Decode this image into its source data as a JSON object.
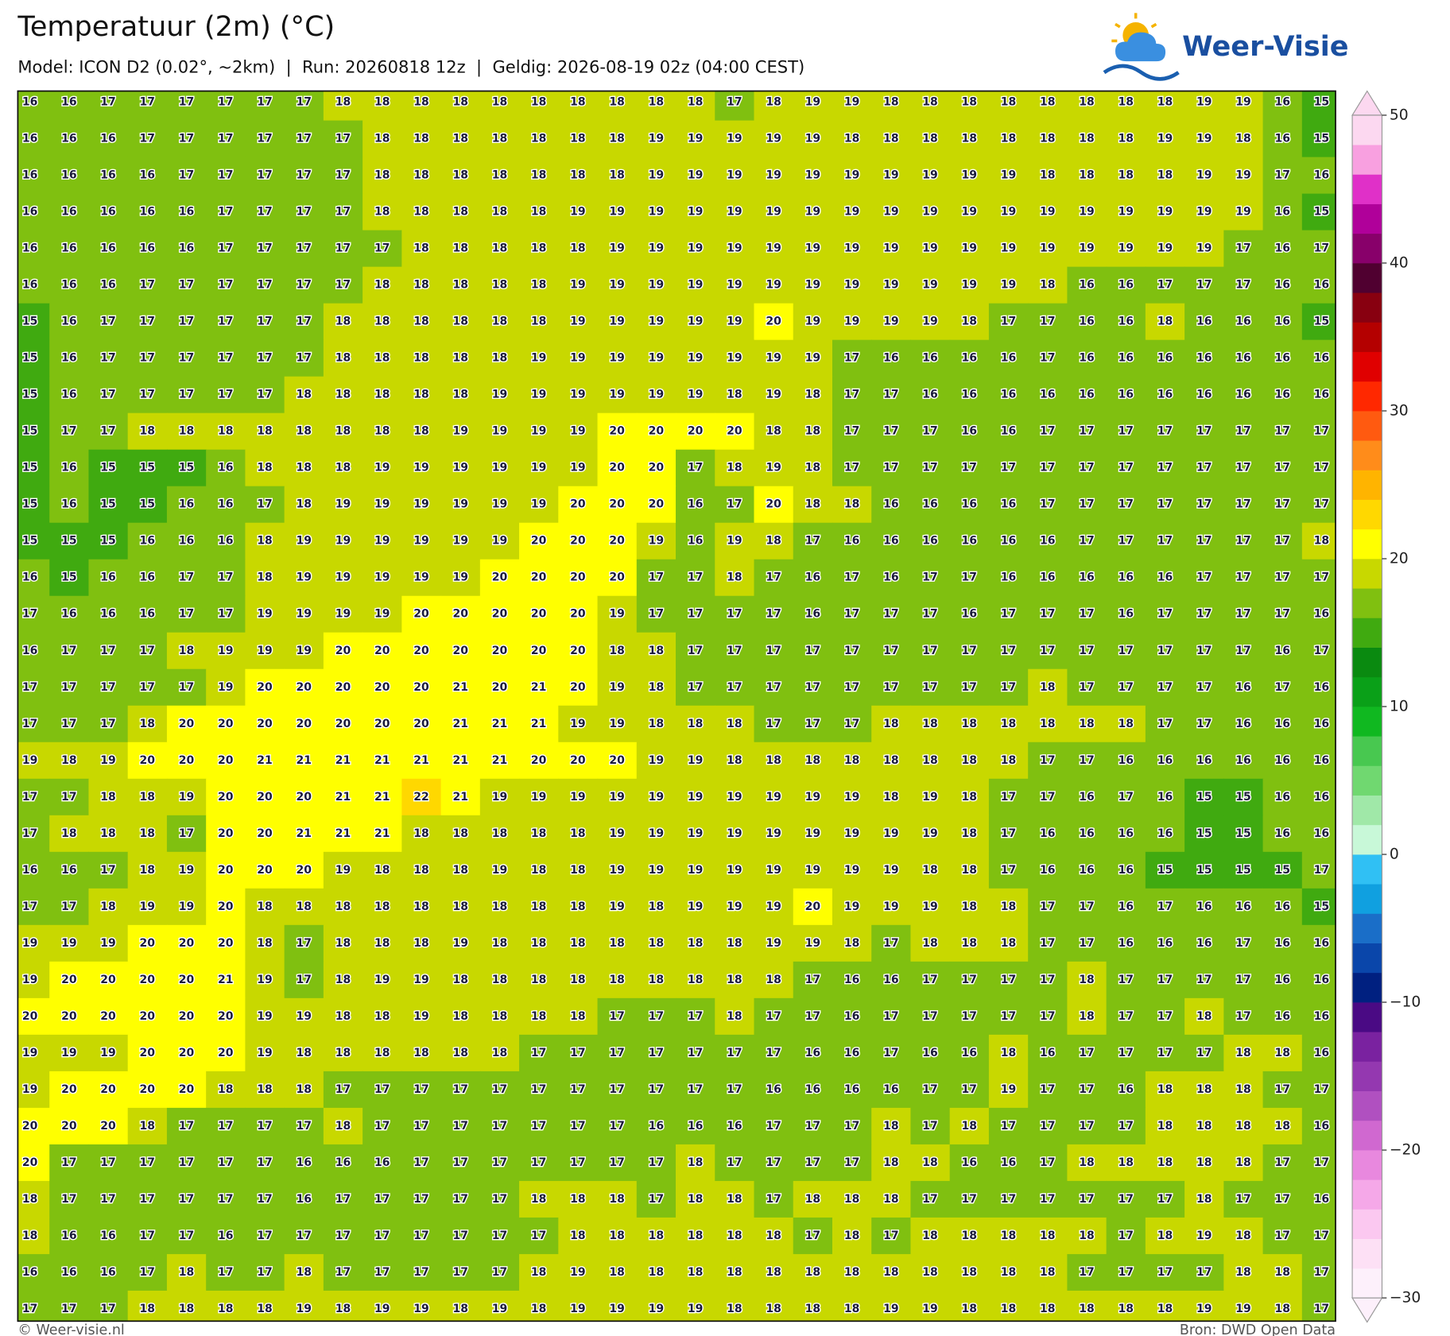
{
  "header": {
    "title": "Temperatuur (2m) (°C)",
    "subtitle": "Model: ICON D2 (0.02°, ~2km)  |  Run: 20260818 12z  |  Geldig: 2026-08-19 02z (04:00 CEST)",
    "logo": "Weer-Visie"
  },
  "map": {
    "rows": [
      [
        16,
        16,
        17,
        17,
        17,
        17,
        17,
        17,
        18,
        18,
        18,
        18,
        18,
        18,
        18,
        18,
        18,
        18,
        17,
        18,
        19,
        19,
        18,
        18,
        18,
        18,
        18,
        18,
        18,
        18,
        19,
        19,
        16,
        15
      ],
      [
        16,
        16,
        16,
        17,
        17,
        17,
        17,
        17,
        17,
        18,
        18,
        18,
        18,
        18,
        18,
        18,
        19,
        19,
        19,
        19,
        19,
        18,
        18,
        18,
        18,
        18,
        18,
        18,
        18,
        19,
        19,
        18,
        16,
        15
      ],
      [
        16,
        16,
        16,
        16,
        17,
        17,
        17,
        17,
        17,
        18,
        18,
        18,
        18,
        18,
        18,
        18,
        19,
        19,
        19,
        19,
        19,
        19,
        19,
        19,
        19,
        19,
        18,
        18,
        18,
        18,
        19,
        19,
        17,
        16
      ],
      [
        16,
        16,
        16,
        16,
        16,
        17,
        17,
        17,
        17,
        18,
        18,
        18,
        18,
        18,
        19,
        19,
        19,
        19,
        19,
        19,
        19,
        19,
        19,
        19,
        19,
        19,
        19,
        19,
        19,
        19,
        19,
        19,
        16,
        15
      ],
      [
        16,
        16,
        16,
        16,
        16,
        17,
        17,
        17,
        17,
        17,
        18,
        18,
        18,
        18,
        18,
        19,
        19,
        19,
        19,
        19,
        19,
        19,
        19,
        19,
        19,
        19,
        19,
        19,
        19,
        19,
        19,
        17,
        16,
        17
      ],
      [
        16,
        16,
        16,
        17,
        17,
        17,
        17,
        17,
        17,
        18,
        18,
        18,
        18,
        18,
        19,
        19,
        19,
        19,
        19,
        19,
        19,
        19,
        19,
        19,
        19,
        19,
        18,
        16,
        16,
        17,
        17,
        17,
        16,
        16
      ],
      [
        15,
        16,
        17,
        17,
        17,
        17,
        17,
        17,
        18,
        18,
        18,
        18,
        18,
        18,
        19,
        19,
        19,
        19,
        19,
        20,
        19,
        19,
        19,
        19,
        18,
        17,
        17,
        16,
        16,
        18,
        16,
        16,
        16,
        15
      ],
      [
        15,
        16,
        17,
        17,
        17,
        17,
        17,
        17,
        18,
        18,
        18,
        18,
        18,
        19,
        19,
        19,
        19,
        19,
        19,
        19,
        19,
        17,
        16,
        16,
        16,
        16,
        17,
        16,
        16,
        16,
        16,
        16,
        16,
        16
      ],
      [
        15,
        16,
        17,
        17,
        17,
        17,
        17,
        18,
        18,
        18,
        18,
        18,
        19,
        19,
        19,
        19,
        19,
        19,
        18,
        19,
        18,
        17,
        17,
        16,
        16,
        16,
        16,
        16,
        16,
        16,
        16,
        16,
        16,
        16
      ],
      [
        15,
        17,
        17,
        18,
        18,
        18,
        18,
        18,
        18,
        18,
        18,
        19,
        19,
        19,
        19,
        20,
        20,
        20,
        20,
        18,
        18,
        17,
        17,
        17,
        16,
        16,
        17,
        17,
        17,
        17,
        17,
        17,
        17,
        17
      ],
      [
        15,
        16,
        15,
        15,
        15,
        16,
        18,
        18,
        18,
        19,
        19,
        19,
        19,
        19,
        19,
        20,
        20,
        17,
        18,
        19,
        18,
        17,
        17,
        17,
        17,
        17,
        17,
        17,
        17,
        17,
        17,
        17,
        17,
        17
      ],
      [
        15,
        16,
        15,
        15,
        16,
        16,
        17,
        18,
        19,
        19,
        19,
        19,
        19,
        19,
        20,
        20,
        20,
        16,
        17,
        20,
        18,
        18,
        16,
        16,
        16,
        16,
        17,
        17,
        17,
        17,
        17,
        17,
        17,
        17
      ],
      [
        15,
        15,
        15,
        16,
        16,
        16,
        18,
        19,
        19,
        19,
        19,
        19,
        19,
        20,
        20,
        20,
        19,
        16,
        19,
        18,
        17,
        16,
        16,
        16,
        16,
        16,
        16,
        17,
        17,
        17,
        17,
        17,
        17,
        18
      ],
      [
        16,
        15,
        16,
        16,
        17,
        17,
        18,
        19,
        19,
        19,
        19,
        19,
        20,
        20,
        20,
        20,
        17,
        17,
        18,
        17,
        16,
        17,
        16,
        17,
        17,
        16,
        16,
        16,
        16,
        16,
        17,
        17,
        17,
        17
      ],
      [
        17,
        16,
        16,
        16,
        17,
        17,
        19,
        19,
        19,
        19,
        20,
        20,
        20,
        20,
        20,
        19,
        17,
        17,
        17,
        17,
        16,
        17,
        17,
        17,
        16,
        17,
        17,
        17,
        16,
        17,
        17,
        17,
        17,
        16
      ],
      [
        16,
        17,
        17,
        17,
        18,
        19,
        19,
        19,
        20,
        20,
        20,
        20,
        20,
        20,
        20,
        18,
        18,
        17,
        17,
        17,
        17,
        17,
        17,
        17,
        17,
        17,
        17,
        17,
        17,
        17,
        17,
        17,
        16,
        17
      ],
      [
        17,
        17,
        17,
        17,
        17,
        19,
        20,
        20,
        20,
        20,
        20,
        21,
        20,
        21,
        20,
        19,
        18,
        17,
        17,
        17,
        17,
        17,
        17,
        17,
        17,
        17,
        18,
        17,
        17,
        17,
        17,
        16,
        17,
        16
      ],
      [
        17,
        17,
        17,
        18,
        20,
        20,
        20,
        20,
        20,
        20,
        20,
        21,
        21,
        21,
        19,
        19,
        18,
        18,
        18,
        17,
        17,
        17,
        18,
        18,
        18,
        18,
        18,
        18,
        18,
        17,
        17,
        16,
        16,
        16
      ],
      [
        19,
        18,
        19,
        20,
        20,
        20,
        21,
        21,
        21,
        21,
        21,
        21,
        21,
        20,
        20,
        20,
        19,
        19,
        18,
        18,
        18,
        18,
        18,
        18,
        18,
        18,
        17,
        17,
        16,
        16,
        16,
        16,
        16,
        16
      ],
      [
        17,
        17,
        18,
        18,
        19,
        20,
        20,
        20,
        21,
        21,
        22,
        21,
        19,
        19,
        19,
        19,
        19,
        19,
        19,
        19,
        19,
        19,
        18,
        19,
        18,
        17,
        17,
        16,
        17,
        16,
        15,
        15,
        16,
        16
      ],
      [
        17,
        18,
        18,
        18,
        17,
        20,
        20,
        21,
        21,
        21,
        18,
        18,
        18,
        18,
        18,
        19,
        19,
        19,
        19,
        19,
        19,
        19,
        19,
        19,
        18,
        17,
        16,
        16,
        16,
        16,
        15,
        15,
        16,
        16
      ],
      [
        16,
        16,
        17,
        18,
        19,
        20,
        20,
        20,
        19,
        18,
        18,
        18,
        19,
        18,
        18,
        19,
        19,
        19,
        19,
        19,
        19,
        19,
        19,
        18,
        18,
        17,
        16,
        16,
        16,
        15,
        15,
        15,
        15,
        17
      ],
      [
        17,
        17,
        18,
        19,
        19,
        20,
        18,
        18,
        18,
        18,
        18,
        18,
        18,
        18,
        18,
        19,
        18,
        19,
        19,
        19,
        20,
        19,
        19,
        19,
        18,
        18,
        17,
        17,
        16,
        17,
        16,
        16,
        16,
        15
      ],
      [
        19,
        19,
        19,
        20,
        20,
        20,
        18,
        17,
        18,
        18,
        18,
        19,
        18,
        18,
        18,
        18,
        18,
        18,
        18,
        19,
        19,
        18,
        17,
        18,
        18,
        18,
        17,
        17,
        16,
        16,
        16,
        17,
        16,
        16
      ],
      [
        19,
        20,
        20,
        20,
        20,
        21,
        19,
        17,
        18,
        19,
        19,
        18,
        18,
        18,
        18,
        18,
        18,
        18,
        18,
        18,
        17,
        16,
        16,
        17,
        17,
        17,
        17,
        18,
        17,
        17,
        17,
        17,
        16,
        16
      ],
      [
        20,
        20,
        20,
        20,
        20,
        20,
        19,
        19,
        18,
        18,
        19,
        18,
        18,
        18,
        18,
        17,
        17,
        17,
        18,
        17,
        17,
        16,
        17,
        17,
        17,
        17,
        17,
        18,
        17,
        17,
        18,
        17,
        16,
        16
      ],
      [
        19,
        19,
        19,
        20,
        20,
        20,
        19,
        18,
        18,
        18,
        18,
        18,
        18,
        17,
        17,
        17,
        17,
        17,
        17,
        17,
        16,
        16,
        17,
        16,
        16,
        18,
        16,
        17,
        17,
        17,
        17,
        18,
        18,
        16
      ],
      [
        19,
        20,
        20,
        20,
        20,
        18,
        18,
        18,
        17,
        17,
        17,
        17,
        17,
        17,
        17,
        17,
        17,
        17,
        17,
        16,
        16,
        16,
        16,
        17,
        17,
        19,
        17,
        17,
        16,
        18,
        18,
        18,
        17,
        17
      ],
      [
        20,
        20,
        20,
        18,
        17,
        17,
        17,
        17,
        18,
        17,
        17,
        17,
        17,
        17,
        17,
        17,
        16,
        16,
        16,
        17,
        17,
        17,
        18,
        17,
        18,
        17,
        17,
        17,
        17,
        18,
        18,
        18,
        18,
        16
      ],
      [
        20,
        17,
        17,
        17,
        17,
        17,
        17,
        16,
        16,
        16,
        17,
        17,
        17,
        17,
        17,
        17,
        17,
        18,
        17,
        17,
        17,
        17,
        18,
        18,
        16,
        16,
        17,
        18,
        18,
        18,
        18,
        18,
        17,
        17
      ],
      [
        18,
        17,
        17,
        17,
        17,
        17,
        17,
        16,
        17,
        17,
        17,
        17,
        17,
        18,
        18,
        18,
        17,
        18,
        18,
        17,
        18,
        18,
        18,
        17,
        17,
        17,
        17,
        17,
        17,
        17,
        18,
        17,
        17,
        16
      ],
      [
        18,
        16,
        16,
        17,
        17,
        16,
        17,
        17,
        17,
        17,
        17,
        17,
        17,
        17,
        18,
        18,
        18,
        18,
        18,
        18,
        17,
        18,
        17,
        18,
        18,
        18,
        18,
        18,
        17,
        18,
        19,
        18,
        17,
        17
      ],
      [
        16,
        16,
        16,
        17,
        18,
        17,
        17,
        18,
        17,
        17,
        17,
        17,
        17,
        18,
        19,
        18,
        18,
        18,
        18,
        18,
        18,
        18,
        18,
        18,
        18,
        18,
        18,
        17,
        17,
        17,
        17,
        18,
        18,
        17
      ],
      [
        17,
        17,
        17,
        18,
        18,
        18,
        18,
        19,
        18,
        19,
        19,
        18,
        19,
        18,
        19,
        19,
        19,
        19,
        18,
        18,
        18,
        18,
        19,
        19,
        18,
        18,
        18,
        18,
        18,
        18,
        19,
        19,
        18,
        17
      ]
    ]
  },
  "colorbar": {
    "lim": [
      -30,
      50
    ],
    "ticks": [
      50,
      40,
      30,
      20,
      10,
      0,
      {
        "value": -10,
        "label": "−10"
      },
      {
        "value": -20,
        "label": "−20"
      },
      {
        "value": -30,
        "label": "−30"
      }
    ],
    "colors": [
      "#fdf0fb",
      "#fde0f5",
      "#fbc8f0",
      "#f5a8e8",
      "#e888de",
      "#d068d0",
      "#b050c0",
      "#9438b0",
      "#7a22a0",
      "#4a0a84",
      "#002080",
      "#0a46aa",
      "#1a6ec8",
      "#10a0e0",
      "#30c0f4",
      "#c8f8d8",
      "#a0e8a8",
      "#70d870",
      "#48c850",
      "#10b820",
      "#0aa018",
      "#0a8a10",
      "#40aa10",
      "#80c010",
      "#c8d800",
      "#ffff00",
      "#ffd800",
      "#ffb400",
      "#ff8c1a",
      "#ff5a10",
      "#ff2800",
      "#e00000",
      "#b40000",
      "#880010",
      "#500030",
      "#88006a",
      "#b0009a",
      "#e030c8",
      "#f8a0e0",
      "#fcd8f0"
    ]
  },
  "footer": {
    "left": "© Weer-visie.nl",
    "right": "Bron: DWD Open Data"
  }
}
